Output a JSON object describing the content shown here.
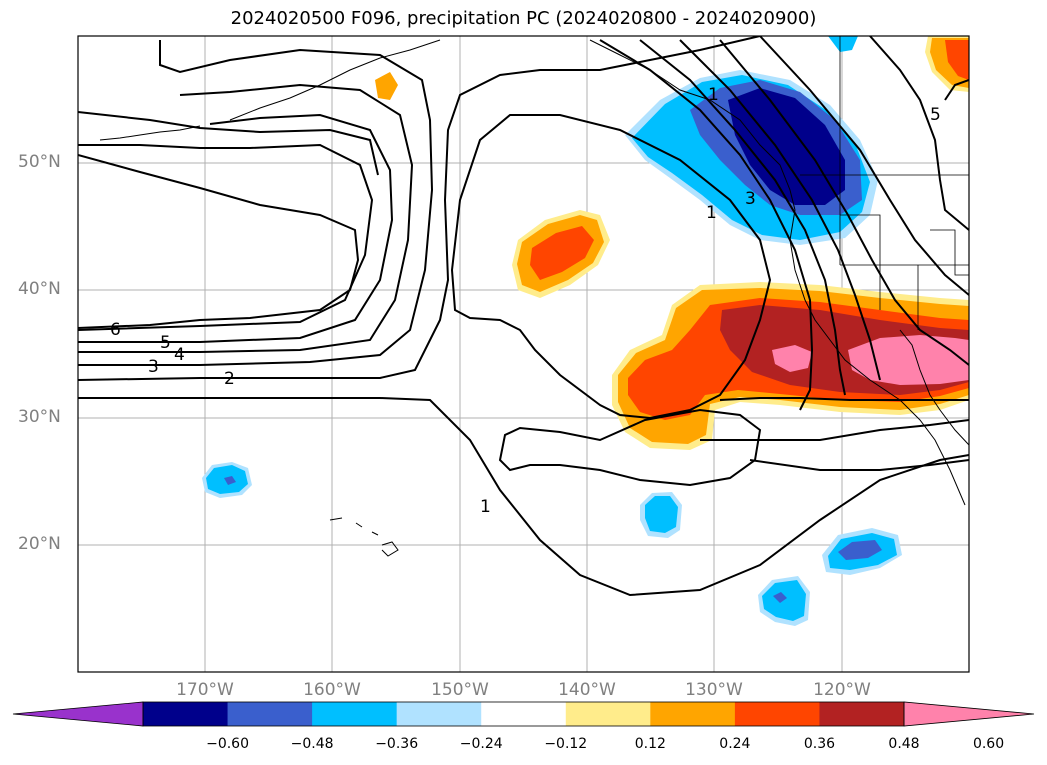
{
  "title": "2024020500 F096, precipitation PC (2024020800 - 2024020900)",
  "lat_labels": [
    "50°N",
    "40°N",
    "30°N",
    "20°N"
  ],
  "lon_labels": [
    "170°W",
    "160°W",
    "150°W",
    "140°W",
    "130°W",
    "120°W"
  ],
  "colorbar": {
    "ticks": [
      "−0.60",
      "−0.48",
      "−0.36",
      "−0.24",
      "−0.12",
      "0.12",
      "0.24",
      "0.36",
      "0.48",
      "0.60"
    ],
    "colors": [
      "#9932cc",
      "#00008b",
      "#3a5fcd",
      "#00bfff",
      "#b0e2ff",
      "#ffffff",
      "#ffec8b",
      "#ffa500",
      "#ff4500",
      "#b22222",
      "#ff82ab"
    ]
  },
  "contour_labels": [
    "6",
    "5",
    "4",
    "3",
    "2",
    "1",
    "1",
    "1",
    "3",
    "5"
  ]
}
